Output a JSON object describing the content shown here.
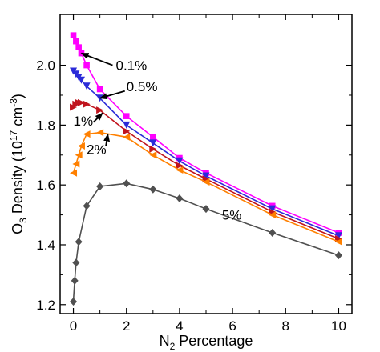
{
  "chart_data": {
    "type": "line",
    "title": "",
    "xlabel": {
      "main": "N",
      "sub": "2",
      "rest": " Percentage"
    },
    "ylabel": {
      "main": "O",
      "sub": "3",
      "rest": " Density (10",
      "sup": "17",
      "rest2": " cm",
      "sup2": "-3",
      "close": ")"
    },
    "xlim": [
      -0.5,
      10.5
    ],
    "ylim": [
      1.17,
      2.17
    ],
    "xticks": [
      0,
      2,
      4,
      6,
      8,
      10
    ],
    "xtick_labels": [
      "0",
      "2",
      "4",
      "6",
      "8",
      "10"
    ],
    "yticks": [
      1.2,
      1.4,
      1.6,
      1.8,
      2.0
    ],
    "ytick_labels": [
      "1.2",
      "1.4",
      "1.6",
      "1.8",
      "2.0"
    ],
    "grid": false,
    "legend": "none",
    "series": [
      {
        "name": "0.1%",
        "color": "#ff00ff",
        "marker": "square",
        "x": [
          0,
          0.1,
          0.2,
          0.3,
          0.5,
          1,
          2,
          3,
          4,
          5,
          7.5,
          10
        ],
        "y": [
          2.1,
          2.08,
          2.06,
          2.04,
          2.0,
          1.92,
          1.83,
          1.76,
          1.69,
          1.64,
          1.53,
          1.44
        ]
      },
      {
        "name": "0.5%",
        "color": "#2b2bd8",
        "marker": "triangle-down",
        "x": [
          0,
          0.1,
          0.2,
          0.3,
          0.5,
          1,
          2,
          3,
          4,
          5,
          7.5,
          10
        ],
        "y": [
          1.98,
          1.97,
          1.96,
          1.95,
          1.93,
          1.89,
          1.8,
          1.74,
          1.68,
          1.63,
          1.52,
          1.43
        ]
      },
      {
        "name": "1%",
        "color": "#c0141e",
        "marker": "triangle-right",
        "x": [
          0,
          0.1,
          0.2,
          0.3,
          0.5,
          1,
          2,
          3,
          4,
          5,
          7.5,
          10
        ],
        "y": [
          1.86,
          1.87,
          1.875,
          1.875,
          1.87,
          1.85,
          1.78,
          1.72,
          1.665,
          1.62,
          1.51,
          1.42
        ]
      },
      {
        "name": "2%",
        "color": "#ff8000",
        "marker": "triangle-left",
        "x": [
          0,
          0.1,
          0.2,
          0.3,
          0.5,
          1,
          2,
          3,
          4,
          5,
          7.5,
          10
        ],
        "y": [
          1.64,
          1.67,
          1.7,
          1.73,
          1.77,
          1.775,
          1.76,
          1.7,
          1.65,
          1.61,
          1.5,
          1.41
        ]
      },
      {
        "name": "5%",
        "color": "#505050",
        "marker": "diamond",
        "x": [
          0,
          0.05,
          0.1,
          0.2,
          0.5,
          1,
          2,
          3,
          4,
          5,
          7.5,
          10
        ],
        "y": [
          1.21,
          1.28,
          1.34,
          1.41,
          1.53,
          1.595,
          1.605,
          1.585,
          1.555,
          1.52,
          1.44,
          1.365
        ]
      }
    ],
    "annotations": [
      {
        "text": "0.1%",
        "x": 1.6,
        "y": 2.0,
        "arrow_to": [
          0.3,
          2.04
        ]
      },
      {
        "text": "0.5%",
        "x": 2.0,
        "y": 1.93,
        "arrow_to": [
          1.0,
          1.89
        ]
      },
      {
        "text": "1%",
        "x": 0.0,
        "y": 1.815,
        "arrow_to": [
          1.1,
          1.84
        ]
      },
      {
        "text": "2%",
        "x": 0.5,
        "y": 1.72,
        "arrow_to": [
          1.3,
          1.77
        ]
      },
      {
        "text": "5%",
        "x": 5.6,
        "y": 1.5,
        "arrow_to": null
      }
    ]
  }
}
